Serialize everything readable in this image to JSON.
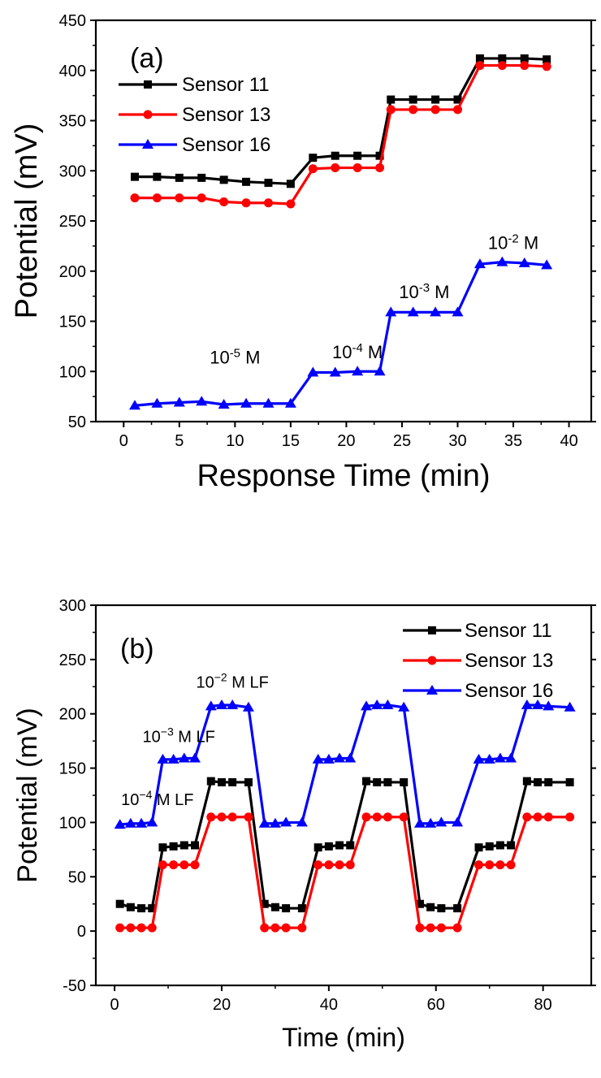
{
  "colors": {
    "sensor11": "#000000",
    "sensor13": "#ff0000",
    "sensor16": "#0000ff"
  },
  "chart_data": [
    {
      "type": "line",
      "panel_label": "(a)",
      "xlabel": "Response Time (min)",
      "ylabel": "Potential (mV)",
      "xlim": [
        -2.5,
        42
      ],
      "ylim": [
        50,
        450
      ],
      "xticks": [
        0,
        5,
        10,
        15,
        20,
        25,
        30,
        35,
        40
      ],
      "yticks": [
        50,
        100,
        150,
        200,
        250,
        300,
        350,
        400,
        450
      ],
      "legend_position": "top-left",
      "series": [
        {
          "name": "Sensor 11",
          "color": "#000000",
          "marker": "square",
          "points": [
            [
              1,
              294
            ],
            [
              3,
              294
            ],
            [
              5,
              293
            ],
            [
              7,
              293
            ],
            [
              9,
              291
            ],
            [
              11,
              289
            ],
            [
              13,
              288
            ],
            [
              15,
              287
            ],
            [
              17,
              313
            ],
            [
              19,
              315
            ],
            [
              21,
              315
            ],
            [
              23,
              315
            ],
            [
              24,
              371
            ],
            [
              26,
              371
            ],
            [
              28,
              371
            ],
            [
              30,
              371
            ],
            [
              32,
              412
            ],
            [
              34,
              412
            ],
            [
              36,
              412
            ],
            [
              38,
              411
            ]
          ]
        },
        {
          "name": "Sensor 13",
          "color": "#ff0000",
          "marker": "circle",
          "points": [
            [
              1,
              273
            ],
            [
              3,
              273
            ],
            [
              5,
              273
            ],
            [
              7,
              273
            ],
            [
              9,
              269
            ],
            [
              11,
              268
            ],
            [
              13,
              268
            ],
            [
              15,
              267
            ],
            [
              17,
              302
            ],
            [
              19,
              303
            ],
            [
              21,
              303
            ],
            [
              23,
              303
            ],
            [
              24,
              361
            ],
            [
              26,
              361
            ],
            [
              28,
              361
            ],
            [
              30,
              361
            ],
            [
              32,
              405
            ],
            [
              34,
              405
            ],
            [
              36,
              405
            ],
            [
              38,
              404
            ]
          ]
        },
        {
          "name": "Sensor 16",
          "color": "#0000ff",
          "marker": "triangle",
          "points": [
            [
              1,
              66
            ],
            [
              3,
              68
            ],
            [
              5,
              69
            ],
            [
              7,
              70
            ],
            [
              9,
              67
            ],
            [
              11,
              68
            ],
            [
              13,
              68
            ],
            [
              15,
              68
            ],
            [
              17,
              99
            ],
            [
              19,
              99
            ],
            [
              21,
              100
            ],
            [
              23,
              100
            ],
            [
              24,
              159
            ],
            [
              26,
              159
            ],
            [
              28,
              159
            ],
            [
              30,
              159
            ],
            [
              32,
              207
            ],
            [
              34,
              209
            ],
            [
              36,
              208
            ],
            [
              38,
              206
            ]
          ]
        }
      ],
      "annotations": [
        {
          "base": "10",
          "exp": "-5",
          "unit": "M",
          "x": 10,
          "y": 108
        },
        {
          "base": "10",
          "exp": "-4",
          "unit": "M",
          "x": 21,
          "y": 113
        },
        {
          "base": "10",
          "exp": "-3",
          "unit": "M",
          "x": 27,
          "y": 173
        },
        {
          "base": "10",
          "exp": "-2",
          "unit": "M",
          "x": 35,
          "y": 222
        }
      ]
    },
    {
      "type": "line",
      "panel_label": "(b)",
      "xlabel": "Time (min)",
      "ylabel": "Potential (mV)",
      "xlim": [
        -3.5,
        89
      ],
      "ylim": [
        -50,
        300
      ],
      "xticks": [
        0,
        20,
        40,
        60,
        80
      ],
      "yticks": [
        -50,
        0,
        50,
        100,
        150,
        200,
        250,
        300
      ],
      "legend_position": "top-right",
      "series": [
        {
          "name": "Sensor 11",
          "color": "#000000",
          "marker": "square",
          "points": [
            [
              1,
              25
            ],
            [
              3,
              22
            ],
            [
              5,
              21
            ],
            [
              7,
              21
            ],
            [
              9,
              77
            ],
            [
              11,
              78
            ],
            [
              13,
              79
            ],
            [
              15,
              79
            ],
            [
              18,
              138
            ],
            [
              20,
              137
            ],
            [
              22,
              137
            ],
            [
              25,
              137
            ],
            [
              28,
              25
            ],
            [
              30,
              22
            ],
            [
              32,
              21
            ],
            [
              35,
              21
            ],
            [
              38,
              77
            ],
            [
              40,
              78
            ],
            [
              42,
              79
            ],
            [
              44,
              79
            ],
            [
              47,
              138
            ],
            [
              49,
              137
            ],
            [
              51,
              137
            ],
            [
              54,
              137
            ],
            [
              57,
              25
            ],
            [
              59,
              22
            ],
            [
              61,
              21
            ],
            [
              64,
              21
            ],
            [
              68,
              77
            ],
            [
              70,
              78
            ],
            [
              72,
              79
            ],
            [
              74,
              79
            ],
            [
              77,
              138
            ],
            [
              79,
              137
            ],
            [
              81,
              137
            ],
            [
              85,
              137
            ]
          ]
        },
        {
          "name": "Sensor 13",
          "color": "#ff0000",
          "marker": "circle",
          "points": [
            [
              1,
              3
            ],
            [
              3,
              3
            ],
            [
              5,
              3
            ],
            [
              7,
              3
            ],
            [
              9,
              61
            ],
            [
              11,
              61
            ],
            [
              13,
              61
            ],
            [
              15,
              61
            ],
            [
              18,
              105
            ],
            [
              20,
              105
            ],
            [
              22,
              105
            ],
            [
              25,
              105
            ],
            [
              28,
              3
            ],
            [
              30,
              3
            ],
            [
              32,
              3
            ],
            [
              35,
              3
            ],
            [
              38,
              61
            ],
            [
              40,
              61
            ],
            [
              42,
              61
            ],
            [
              44,
              61
            ],
            [
              47,
              105
            ],
            [
              49,
              105
            ],
            [
              51,
              105
            ],
            [
              54,
              105
            ],
            [
              57,
              3
            ],
            [
              59,
              3
            ],
            [
              61,
              3
            ],
            [
              64,
              3
            ],
            [
              68,
              61
            ],
            [
              70,
              61
            ],
            [
              72,
              61
            ],
            [
              74,
              61
            ],
            [
              77,
              105
            ],
            [
              79,
              105
            ],
            [
              81,
              105
            ],
            [
              85,
              105
            ]
          ]
        },
        {
          "name": "Sensor 16",
          "color": "#0000ff",
          "marker": "triangle",
          "points": [
            [
              1,
              98
            ],
            [
              3,
              99
            ],
            [
              5,
              99
            ],
            [
              7,
              100
            ],
            [
              9,
              158
            ],
            [
              11,
              158
            ],
            [
              13,
              159
            ],
            [
              15,
              159
            ],
            [
              18,
              207
            ],
            [
              20,
              208
            ],
            [
              22,
              208
            ],
            [
              25,
              206
            ],
            [
              28,
              99
            ],
            [
              30,
              99
            ],
            [
              32,
              100
            ],
            [
              35,
              100
            ],
            [
              38,
              158
            ],
            [
              40,
              158
            ],
            [
              42,
              159
            ],
            [
              44,
              159
            ],
            [
              47,
              207
            ],
            [
              49,
              208
            ],
            [
              51,
              208
            ],
            [
              54,
              206
            ],
            [
              57,
              99
            ],
            [
              59,
              99
            ],
            [
              61,
              100
            ],
            [
              64,
              100
            ],
            [
              68,
              158
            ],
            [
              70,
              158
            ],
            [
              72,
              159
            ],
            [
              74,
              159
            ],
            [
              77,
              208
            ],
            [
              79,
              208
            ],
            [
              81,
              207
            ],
            [
              85,
              206
            ]
          ]
        }
      ],
      "annotations": [
        {
          "base": "10",
          "exp": "−4",
          "unit": "M LF",
          "x": 8,
          "y": 116
        },
        {
          "base": "10",
          "exp": "−3",
          "unit": "M LF",
          "x": 12,
          "y": 174
        },
        {
          "base": "10",
          "exp": "−2",
          "unit": "M LF",
          "x": 22,
          "y": 224
        }
      ]
    }
  ]
}
